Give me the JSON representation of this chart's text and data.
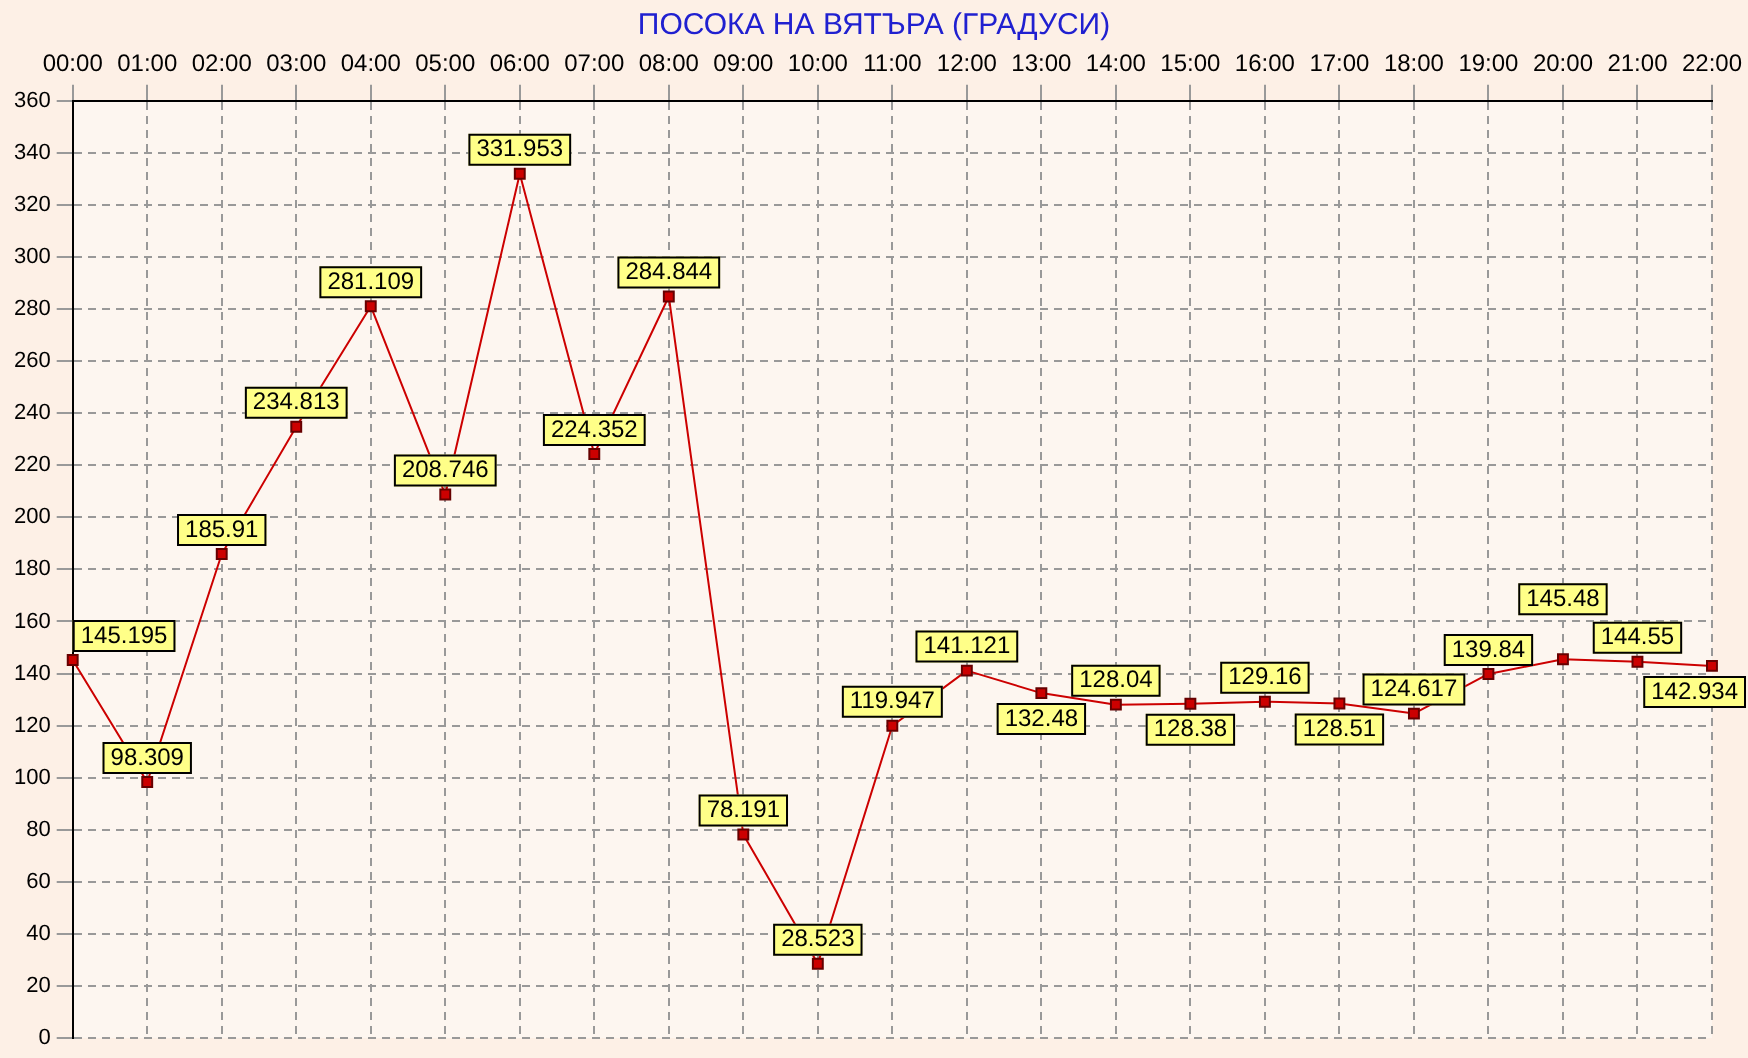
{
  "chart_data": {
    "type": "line",
    "title": "ПОСОКА НА ВЯТЪРА    (ГРАДУСИ)",
    "categories": [
      "00:00",
      "01:00",
      "02:00",
      "03:00",
      "04:00",
      "05:00",
      "06:00",
      "07:00",
      "08:00",
      "09:00",
      "10:00",
      "11:00",
      "12:00",
      "13:00",
      "14:00",
      "15:00",
      "16:00",
      "17:00",
      "18:00",
      "19:00",
      "20:00",
      "21:00",
      "22:00"
    ],
    "series": [
      {
        "color": "#cc0000",
        "values": [
          145.195,
          98.309,
          185.91,
          234.813,
          281.109,
          208.746,
          331.953,
          224.352,
          284.844,
          78.191,
          28.523,
          119.947,
          141.121,
          132.48,
          128.04,
          128.38,
          129.16,
          128.51,
          124.617,
          139.84,
          145.48,
          144.55,
          142.934
        ]
      }
    ],
    "ylim": [
      0,
      360
    ],
    "yticks": [
      0,
      20,
      40,
      60,
      80,
      100,
      120,
      140,
      160,
      180,
      200,
      220,
      240,
      260,
      280,
      300,
      320,
      340,
      360
    ],
    "grid": true,
    "line_style": "solid",
    "marker": "square",
    "data_labels": true,
    "legend": false
  }
}
